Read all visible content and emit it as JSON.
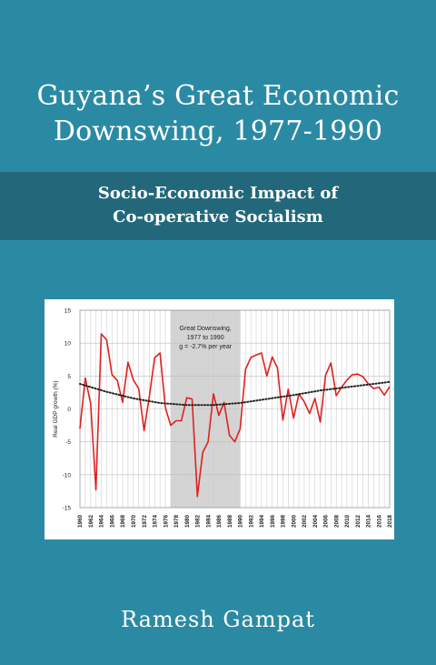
{
  "book": {
    "title_line1": "Guyana’s Great Economic",
    "title_line2": "Downswing, 1977-1990",
    "subtitle_line1": "Socio-Economic Impact of",
    "subtitle_line2": "Co-operative Socialism",
    "author": "Ramesh Gampat"
  },
  "colors": {
    "background": "#2b8aa3",
    "band": "#23687a",
    "text": "#ffffff",
    "series_line": "#e02020",
    "trend_line": "#222222",
    "shade": "#d4d4d4"
  },
  "chart_data": {
    "type": "line",
    "ylabel": "Real GDP growth (%)",
    "ylim": [
      -15,
      15
    ],
    "yticks": [
      15,
      10,
      5,
      0,
      -5,
      -10,
      -15
    ],
    "xlim": [
      1960,
      2018
    ],
    "xtick_labels": [
      "1960",
      "1962",
      "1964",
      "1966",
      "1968",
      "1970",
      "1972",
      "1974",
      "1976",
      "1978",
      "1980",
      "1982",
      "1984",
      "1986",
      "1988",
      "1990",
      "1992",
      "1994",
      "1996",
      "1998",
      "2000",
      "2002",
      "2004",
      "2006",
      "2008",
      "2010",
      "2012",
      "2014",
      "2016",
      "2018"
    ],
    "grid": true,
    "annotation": {
      "lines": [
        "Great Downswing,",
        "1977 to 1990",
        "g = -2.7%  per year"
      ],
      "shaded_range": [
        1977,
        1990
      ]
    },
    "series": [
      {
        "style": "solid",
        "x": [
          1960,
          1961,
          1962,
          1963,
          1964,
          1965,
          1966,
          1967,
          1968,
          1969,
          1970,
          1971,
          1972,
          1973,
          1974,
          1975,
          1976,
          1977,
          1978,
          1979,
          1980,
          1981,
          1982,
          1983,
          1984,
          1985,
          1986,
          1987,
          1988,
          1989,
          1990,
          1991,
          1992,
          1993,
          1994,
          1995,
          1996,
          1997,
          1998,
          1999,
          2000,
          2001,
          2002,
          2003,
          2004,
          2005,
          2006,
          2007,
          2008,
          2009,
          2010,
          2011,
          2012,
          2013,
          2014,
          2015,
          2016,
          2017,
          2018
        ],
        "values": [
          -3.0,
          4.7,
          0.8,
          -12.3,
          11.4,
          10.5,
          5.2,
          4.3,
          1.0,
          7.1,
          4.4,
          3.1,
          -3.3,
          1.9,
          7.8,
          8.5,
          0.2,
          -2.5,
          -1.8,
          -1.8,
          1.7,
          1.5,
          -13.3,
          -6.6,
          -5.0,
          2.3,
          -1.0,
          1.0,
          -4.0,
          -5.0,
          -3.0,
          6.0,
          7.8,
          8.2,
          8.5,
          5.0,
          7.9,
          6.2,
          -1.7,
          3.0,
          -1.4,
          2.3,
          1.1,
          -0.7,
          1.6,
          -2.0,
          5.1,
          7.0,
          2.0,
          3.3,
          4.4,
          5.2,
          5.3,
          4.9,
          3.8,
          3.1,
          3.3,
          2.1,
          3.4
        ]
      },
      {
        "style": "dotted",
        "x": [
          1960,
          1965,
          1970,
          1975,
          1980,
          1985,
          1990,
          1995,
          2000,
          2005,
          2010,
          2015,
          2018
        ],
        "values": [
          3.8,
          2.6,
          1.6,
          0.9,
          0.6,
          0.6,
          0.9,
          1.5,
          2.1,
          2.8,
          3.3,
          3.8,
          4.1
        ]
      }
    ]
  }
}
